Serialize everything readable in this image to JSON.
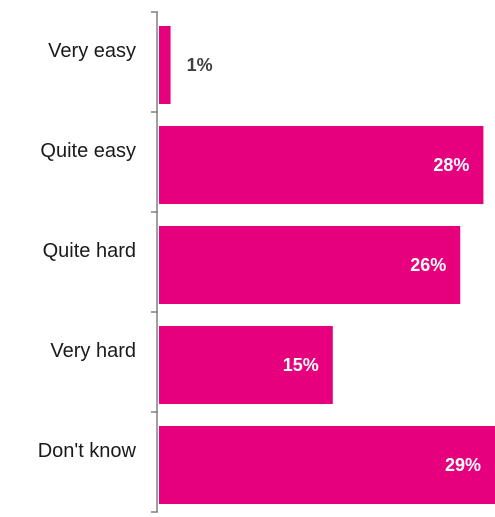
{
  "chart_data": {
    "type": "bar",
    "orientation": "horizontal",
    "categories": [
      "Very easy",
      "Quite easy",
      "Quite hard",
      "Very hard",
      "Don't know"
    ],
    "values": [
      1,
      28,
      26,
      15,
      29
    ],
    "value_labels": [
      "1%",
      "28%",
      "26%",
      "15%",
      "29%"
    ],
    "xlim": [
      0,
      29
    ],
    "unit": "%",
    "grid": false,
    "legend": "none",
    "colors": {
      "bar": "#E6007E",
      "label_inside": "#ffffff",
      "label_outside": "#404040",
      "axis": "#808080"
    }
  }
}
